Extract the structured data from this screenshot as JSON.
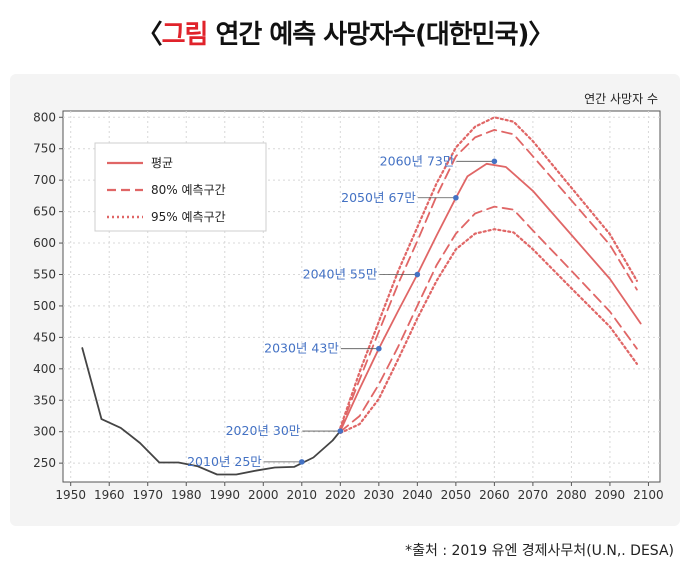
{
  "title": {
    "open_bracket": "〈",
    "accent": "그림",
    "rest": " 연간 예측 사망자수(대한민국)",
    "close_bracket": "〉"
  },
  "source": "*출처 : 2019 유엔 경제사무처(U.N,. DESA)",
  "colors": {
    "historical": "#444444",
    "projection": "#e06666",
    "annotation": "#4472c4",
    "accent": "#e0232b"
  },
  "chart_data": {
    "type": "line",
    "title": "",
    "xlabel": "",
    "ylabel": "연간 사망자 수",
    "xlim": [
      1948,
      2103
    ],
    "ylim": [
      220,
      810
    ],
    "x_ticks": [
      1950,
      1960,
      1970,
      1980,
      1990,
      2000,
      2010,
      2020,
      2030,
      2040,
      2050,
      2060,
      2070,
      2080,
      2090,
      2100
    ],
    "y_ticks": [
      250,
      300,
      350,
      400,
      450,
      500,
      550,
      600,
      650,
      700,
      750,
      800
    ],
    "grid": true,
    "legend": {
      "position": "top-left",
      "entries": [
        "평균",
        "80% 예측구간",
        "95% 예측구간"
      ]
    },
    "series": [
      {
        "style": "solid",
        "color": "#444444",
        "points": [
          [
            1953,
            433
          ],
          [
            1958,
            320
          ],
          [
            1963,
            306
          ],
          [
            1968,
            282
          ],
          [
            1973,
            251
          ],
          [
            1978,
            251
          ],
          [
            1983,
            245
          ],
          [
            1988,
            232
          ],
          [
            1993,
            232
          ],
          [
            1998,
            238
          ],
          [
            2003,
            243
          ],
          [
            2008,
            244
          ],
          [
            2013,
            259
          ],
          [
            2018,
            286
          ],
          [
            2020,
            301
          ]
        ]
      },
      {
        "name": "평균",
        "style": "solid",
        "color": "#e06666",
        "points": [
          [
            2020,
            301
          ],
          [
            2025,
            368
          ],
          [
            2030,
            432
          ],
          [
            2035,
            492
          ],
          [
            2040,
            550
          ],
          [
            2045,
            612
          ],
          [
            2050,
            672
          ],
          [
            2053,
            706
          ],
          [
            2058,
            726
          ],
          [
            2063,
            721
          ],
          [
            2070,
            683
          ],
          [
            2080,
            613
          ],
          [
            2090,
            543
          ],
          [
            2098,
            472
          ]
        ]
      },
      {
        "name": "80% 예측구간",
        "style": "dashed",
        "color": "#e06666",
        "points": [
          [
            2020,
            304
          ],
          [
            2025,
            383
          ],
          [
            2030,
            459
          ],
          [
            2035,
            535
          ],
          [
            2040,
            603
          ],
          [
            2045,
            675
          ],
          [
            2050,
            738
          ],
          [
            2055,
            768
          ],
          [
            2060,
            780
          ],
          [
            2065,
            773
          ],
          [
            2070,
            738
          ],
          [
            2080,
            668
          ],
          [
            2090,
            597
          ],
          [
            2097,
            526
          ]
        ]
      },
      {
        "name": "80% 예측구간",
        "style": "dashed",
        "color": "#e06666",
        "points": [
          [
            2020,
            300
          ],
          [
            2025,
            325
          ],
          [
            2030,
            375
          ],
          [
            2035,
            435
          ],
          [
            2040,
            500
          ],
          [
            2045,
            565
          ],
          [
            2050,
            615
          ],
          [
            2055,
            647
          ],
          [
            2060,
            658
          ],
          [
            2065,
            653
          ],
          [
            2070,
            620
          ],
          [
            2080,
            556
          ],
          [
            2090,
            491
          ],
          [
            2097,
            432
          ]
        ]
      },
      {
        "name": "95% 예측구간",
        "style": "dotted",
        "color": "#e06666",
        "points": [
          [
            2020,
            306
          ],
          [
            2025,
            395
          ],
          [
            2030,
            475
          ],
          [
            2035,
            555
          ],
          [
            2040,
            625
          ],
          [
            2045,
            695
          ],
          [
            2050,
            752
          ],
          [
            2055,
            785
          ],
          [
            2060,
            800
          ],
          [
            2065,
            793
          ],
          [
            2070,
            762
          ],
          [
            2080,
            688
          ],
          [
            2090,
            614
          ],
          [
            2097,
            540
          ]
        ]
      },
      {
        "name": "95% 예측구간",
        "style": "dotted",
        "color": "#e06666",
        "points": [
          [
            2020,
            298
          ],
          [
            2025,
            312
          ],
          [
            2030,
            352
          ],
          [
            2035,
            415
          ],
          [
            2040,
            480
          ],
          [
            2045,
            540
          ],
          [
            2050,
            590
          ],
          [
            2055,
            615
          ],
          [
            2060,
            622
          ],
          [
            2065,
            617
          ],
          [
            2070,
            590
          ],
          [
            2080,
            528
          ],
          [
            2090,
            467
          ],
          [
            2097,
            408
          ]
        ]
      }
    ],
    "annotations": [
      {
        "label": "2010년 25만",
        "x": 2010,
        "y": 252
      },
      {
        "label": "2020년 30만",
        "x": 2020,
        "y": 301
      },
      {
        "label": "2030년 43만",
        "x": 2030,
        "y": 432
      },
      {
        "label": "2040년 55만",
        "x": 2040,
        "y": 550
      },
      {
        "label": "2050년 67만",
        "x": 2050,
        "y": 672
      },
      {
        "label": "2060년 73만",
        "x": 2060,
        "y": 730
      }
    ]
  }
}
